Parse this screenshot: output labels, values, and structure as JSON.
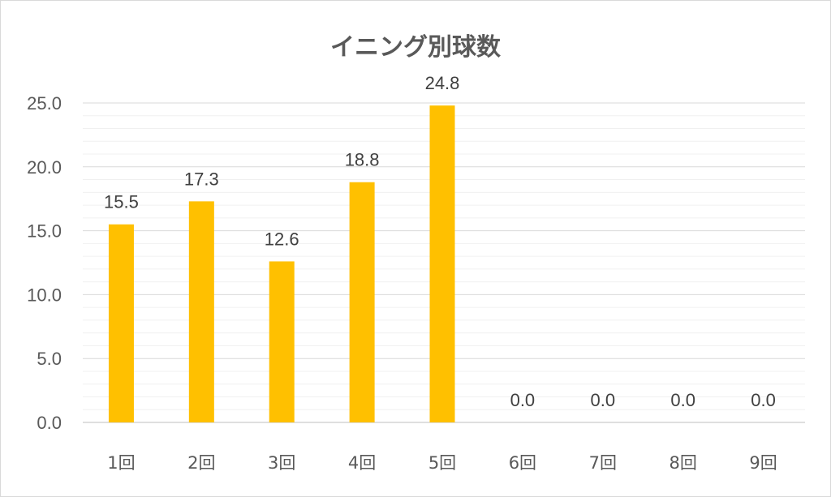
{
  "chart_data": {
    "type": "bar",
    "title": "イニング別球数",
    "xlabel": "",
    "ylabel": "",
    "categories": [
      "1回",
      "2回",
      "3回",
      "4回",
      "5回",
      "6回",
      "7回",
      "8回",
      "9回"
    ],
    "values": [
      15.5,
      17.3,
      12.6,
      18.8,
      24.8,
      0.0,
      0.0,
      0.0,
      0.0
    ],
    "data_labels": [
      "15.5",
      "17.3",
      "12.6",
      "18.8",
      "24.8",
      "0.0",
      "0.0",
      "0.0",
      "0.0"
    ],
    "ylim": [
      0,
      25
    ],
    "y_ticks": [
      {
        "value": 0,
        "label": "0.0"
      },
      {
        "value": 5,
        "label": "5.0"
      },
      {
        "value": 10,
        "label": "10.0"
      },
      {
        "value": 15,
        "label": "15.0"
      },
      {
        "value": 20,
        "label": "20.0"
      },
      {
        "value": 25,
        "label": "25.0"
      }
    ],
    "grid": true,
    "minor_grid": true,
    "bar_color": "#FFC000",
    "legend": "none"
  }
}
